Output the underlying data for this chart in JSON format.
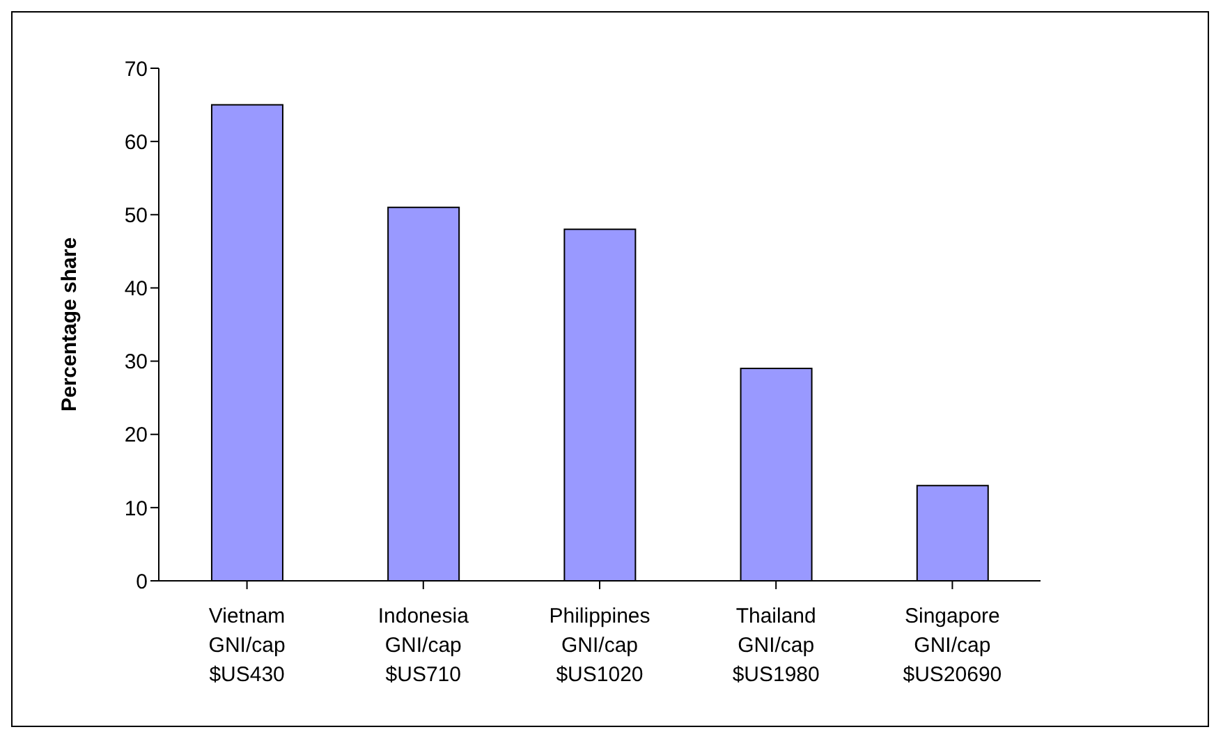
{
  "chart_data": {
    "type": "bar",
    "ylabel": "Percentage share",
    "categories": [
      "Vietnam\nGNI/cap\n$US430",
      "Indonesia\nGNI/cap\n$US710",
      "Philippines\nGNI/cap\n$US1020",
      "Thailand\nGNI/cap\n$US1980",
      "Singapore\nGNI/cap\n$US20690"
    ],
    "values": [
      65,
      51,
      48,
      29,
      13
    ],
    "color": "#9999ff",
    "ylim": [
      0,
      70
    ],
    "yticks": [
      0,
      10,
      20,
      30,
      40,
      50,
      60,
      70
    ],
    "grid": false,
    "legend": false
  }
}
